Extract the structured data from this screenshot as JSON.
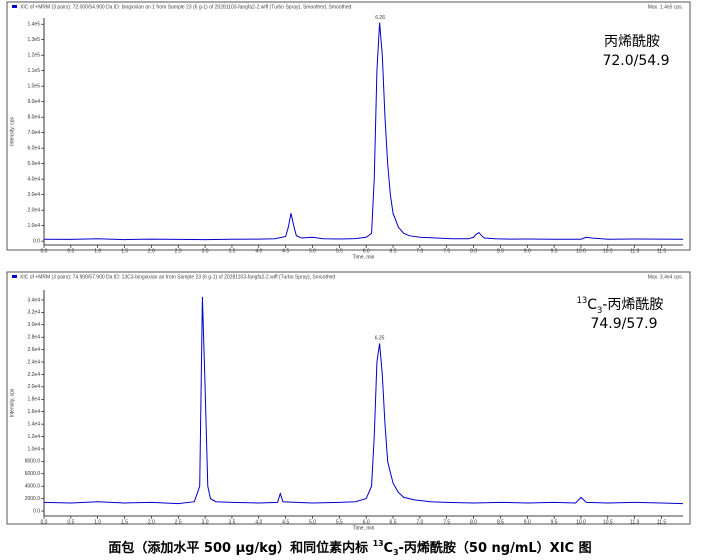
{
  "chart_data": [
    {
      "type": "line",
      "title": "XIC of +MRM (3 pairs): 72.000/54.900 Da ID: bingxixian an 1 from Sample 23 (6 g-1) of 20281103-fangfa2-2.wiff (Turbo Spray), Smoothed, Smoothed",
      "max_label": "Max. 1.4e5 cps.",
      "compound": [
        {
          "text": "丙烯酰胺"
        }
      ],
      "transition": "72.0/54.9",
      "xlabel": "Time, min",
      "ylabel": "Intensity, cps",
      "color": "#0000cc",
      "x": [
        0,
        0.5,
        1.0,
        1.5,
        2.0,
        2.5,
        3.0,
        3.5,
        4.0,
        4.3,
        4.5,
        4.55,
        4.6,
        4.65,
        4.7,
        4.8,
        5.0,
        5.2,
        5.5,
        5.8,
        6.0,
        6.1,
        6.15,
        6.2,
        6.25,
        6.3,
        6.35,
        6.4,
        6.45,
        6.5,
        6.6,
        6.7,
        6.8,
        7.0,
        7.3,
        7.6,
        7.9,
        8.0,
        8.05,
        8.1,
        8.15,
        8.2,
        8.4,
        8.7,
        9.0,
        9.5,
        10.0,
        10.1,
        10.2,
        10.5,
        11.0,
        11.5,
        11.9
      ],
      "values": [
        1200,
        1100,
        1500,
        1000,
        1300,
        1100,
        1000,
        1200,
        1300,
        1500,
        3000,
        9000,
        18000,
        10000,
        3500,
        2000,
        2500,
        1500,
        1400,
        1600,
        2500,
        5000,
        40000,
        110000,
        141000,
        120000,
        80000,
        50000,
        30000,
        18000,
        9000,
        5000,
        3500,
        2500,
        2000,
        1500,
        1500,
        2500,
        4500,
        5500,
        3500,
        2000,
        1500,
        1300,
        1400,
        1200,
        1200,
        2500,
        2000,
        1200,
        1400,
        1300,
        1200
      ],
      "annotations": [
        {
          "label": "6.26",
          "x": 6.26,
          "y": 141000
        }
      ],
      "xlim": [
        0,
        11.9
      ],
      "ylim": [
        -2500,
        144000
      ],
      "xticks": [
        {
          "value": 0,
          "label": "0.0"
        },
        0.5,
        {
          "value": 1,
          "label": "1.0"
        },
        1.5,
        {
          "value": 2,
          "label": "2.0"
        },
        2.5,
        {
          "value": 3,
          "label": "3.0"
        },
        3.5,
        {
          "value": 4,
          "label": "4.0"
        },
        4.5,
        {
          "value": 5,
          "label": "5.0"
        },
        5.5,
        {
          "value": 6,
          "label": "6.0"
        },
        6.5,
        {
          "value": 7,
          "label": "7.0"
        },
        7.5,
        {
          "value": 8,
          "label": "8.0"
        },
        8.5,
        {
          "value": 9,
          "label": "9.0"
        },
        9.5,
        {
          "value": 10,
          "label": "10.0"
        },
        10.5,
        {
          "value": 11,
          "label": "11.0"
        },
        11.5
      ],
      "yticks": [
        {
          "value": 0,
          "label": "0.0"
        },
        {
          "value": 10000,
          "label": "1.0e4"
        },
        {
          "value": 20000,
          "label": "2.0e4"
        },
        {
          "value": 30000,
          "label": "3.0e4"
        },
        {
          "value": 40000,
          "label": "4.0e4"
        },
        {
          "value": 50000,
          "label": "5.0e4"
        },
        {
          "value": 60000,
          "label": "6.0e4"
        },
        {
          "value": 70000,
          "label": "7.0e4"
        },
        {
          "value": 80000,
          "label": "8.0e4"
        },
        {
          "value": 90000,
          "label": "9.0e4"
        },
        {
          "value": 100000,
          "label": "1.0e5"
        },
        {
          "value": 110000,
          "label": "1.1e5"
        },
        {
          "value": 120000,
          "label": "1.2e5"
        },
        {
          "value": 130000,
          "label": "1.3e5"
        },
        {
          "value": 140000,
          "label": "1.4e5"
        }
      ]
    },
    {
      "type": "line",
      "title": "XIC of +MRM (3 pairs): 74.900/57.900 Da ID: 13C3-bingxixian an from Sample 23 (6 g-1) of 20281103-fangfa2-2.wiff (Turbo Spray), Smoothed",
      "max_label": "Max. 3.4e4 cps.",
      "compound": [
        {
          "text": "13",
          "style": "sup"
        },
        {
          "text": "C"
        },
        {
          "text": "3",
          "style": "sub"
        },
        {
          "text": "-丙烯酰胺"
        }
      ],
      "transition": "74.9/57.9",
      "xlabel": "Time, min",
      "ylabel": "Intensity, cps",
      "color": "#0000cc",
      "x": [
        0,
        0.5,
        1.0,
        1.5,
        2.0,
        2.5,
        2.8,
        2.9,
        2.95,
        3.0,
        3.05,
        3.1,
        3.2,
        3.5,
        4.0,
        4.35,
        4.4,
        4.45,
        4.7,
        5.0,
        5.5,
        5.8,
        6.0,
        6.1,
        6.15,
        6.2,
        6.25,
        6.3,
        6.35,
        6.4,
        6.5,
        6.6,
        6.7,
        6.9,
        7.2,
        7.5,
        8.0,
        8.5,
        9.0,
        9.5,
        9.9,
        10.0,
        10.1,
        10.5,
        11.0,
        11.5,
        11.9
      ],
      "values": [
        1400,
        1300,
        1500,
        1300,
        1400,
        1200,
        1500,
        4000,
        34500,
        20000,
        4000,
        2000,
        1500,
        1400,
        1300,
        1400,
        2800,
        1500,
        1400,
        1300,
        1400,
        1500,
        2000,
        4000,
        12000,
        24000,
        27000,
        22000,
        14000,
        8000,
        4500,
        3000,
        2200,
        1800,
        1500,
        1400,
        1300,
        1400,
        1300,
        1400,
        1300,
        2200,
        1400,
        1300,
        1400,
        1300,
        1200
      ],
      "annotations": [
        {
          "label": "6.25",
          "x": 6.25,
          "y": 27000
        }
      ],
      "xlim": [
        0,
        11.9
      ],
      "ylim": [
        -800,
        35600
      ],
      "xticks": [
        {
          "value": 0,
          "label": "0.0"
        },
        0.5,
        {
          "value": 1,
          "label": "1.0"
        },
        1.5,
        {
          "value": 2,
          "label": "2.0"
        },
        2.5,
        {
          "value": 3,
          "label": "3.0"
        },
        3.5,
        {
          "value": 4,
          "label": "4.0"
        },
        4.5,
        {
          "value": 5,
          "label": "5.0"
        },
        5.5,
        {
          "value": 6,
          "label": "6.0"
        },
        6.5,
        {
          "value": 7,
          "label": "7.0"
        },
        7.5,
        {
          "value": 8,
          "label": "8.0"
        },
        8.5,
        {
          "value": 9,
          "label": "9.0"
        },
        9.5,
        {
          "value": 10,
          "label": "10.0"
        },
        10.5,
        {
          "value": 11,
          "label": "11.0"
        },
        11.5
      ],
      "yticks": [
        {
          "value": 0,
          "label": "0.0"
        },
        {
          "value": 2000,
          "label": "2000.0"
        },
        {
          "value": 4000,
          "label": "4000.0"
        },
        {
          "value": 6000,
          "label": "6000.0"
        },
        {
          "value": 8000,
          "label": "8000.0"
        },
        {
          "value": 10000,
          "label": "1.0e4"
        },
        {
          "value": 12000,
          "label": "1.2e4"
        },
        {
          "value": 14000,
          "label": "1.4e4"
        },
        {
          "value": 16000,
          "label": "1.6e4"
        },
        {
          "value": 18000,
          "label": "1.8e4"
        },
        {
          "value": 20000,
          "label": "2.0e4"
        },
        {
          "value": 22000,
          "label": "2.2e4"
        },
        {
          "value": 24000,
          "label": "2.4e4"
        },
        {
          "value": 26000,
          "label": "2.6e4"
        },
        {
          "value": 28000,
          "label": "2.8e4"
        },
        {
          "value": 30000,
          "label": "3.0e4"
        },
        {
          "value": 32000,
          "label": "3.2e4"
        },
        {
          "value": 34000,
          "label": "3.4e4"
        }
      ]
    }
  ],
  "caption": [
    {
      "text": "面包（添加水平 500 μg/kg）和同位素内标 "
    },
    {
      "text": "13",
      "style": "sup"
    },
    {
      "text": "C"
    },
    {
      "text": "3",
      "style": "sub"
    },
    {
      "text": "-丙烯酰胺（50 ng/mL）XIC 图"
    }
  ]
}
